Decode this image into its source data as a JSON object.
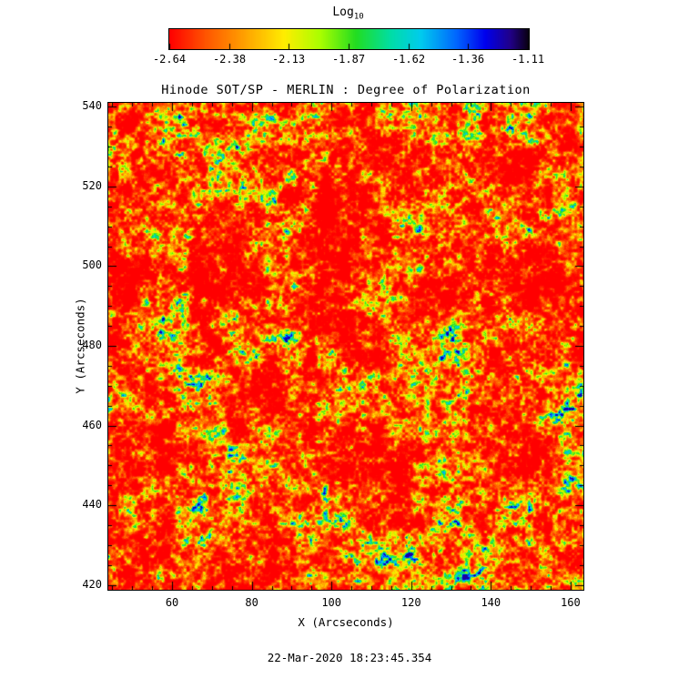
{
  "figure": {
    "title": "Hinode SOT/SP - MERLIN : Degree of Polarization",
    "timestamp": "22-Mar-2020 18:23:45.354"
  },
  "colorbar": {
    "label_base": "Log",
    "label_sub": "10",
    "ticks": [
      "-2.64",
      "-2.38",
      "-2.13",
      "-1.87",
      "-1.62",
      "-1.36",
      "-1.11"
    ],
    "stops": [
      {
        "p": 0.0,
        "c": "#ff0000"
      },
      {
        "p": 0.1,
        "c": "#ff5500"
      },
      {
        "p": 0.22,
        "c": "#ffaa00"
      },
      {
        "p": 0.32,
        "c": "#ffee00"
      },
      {
        "p": 0.42,
        "c": "#aaff00"
      },
      {
        "p": 0.52,
        "c": "#22dd22"
      },
      {
        "p": 0.62,
        "c": "#00ddaa"
      },
      {
        "p": 0.7,
        "c": "#00ccee"
      },
      {
        "p": 0.8,
        "c": "#0066ff"
      },
      {
        "p": 0.88,
        "c": "#0000ee"
      },
      {
        "p": 0.95,
        "c": "#220088"
      },
      {
        "p": 1.0,
        "c": "#0a0014"
      }
    ]
  },
  "chart_data": {
    "type": "heatmap",
    "title": "Hinode SOT/SP - MERLIN : Degree of Polarization",
    "xlabel": "X (Arcseconds)",
    "ylabel": "Y (Arcseconds)",
    "xlim": [
      44,
      163
    ],
    "ylim": [
      419,
      541
    ],
    "x_ticks": [
      60,
      80,
      100,
      120,
      140,
      160
    ],
    "y_ticks": [
      420,
      440,
      460,
      480,
      500,
      520,
      540
    ],
    "x_minor_step": 5,
    "y_minor_step": 5,
    "colorbar_label": "Log10",
    "colorbar_ticks": [
      -2.64,
      -2.38,
      -2.13,
      -1.87,
      -1.62,
      -1.36,
      -1.11
    ],
    "value_range": [
      -2.64,
      -1.11
    ],
    "grid": false,
    "legend": "top colorbar",
    "description": "Solar photospheric degree-of-polarization map rendered in log10 scale. Field is predominantly low polarization (red/orange, near -2.64) with dense fine-grained yellow-green speckles along granule boundaries and sparse strong-polarization clusters appearing cyan/dark-blue (toward -1.11).",
    "notable_features": [
      {
        "x": 113,
        "y": 455,
        "note": "compact dark-blue high-polarization cluster"
      },
      {
        "x": 135,
        "y": 482,
        "note": "blue patch"
      },
      {
        "x": 137,
        "y": 531,
        "note": "blue cluster near top right"
      },
      {
        "x": 122,
        "y": 527,
        "note": "blue-green network patch"
      },
      {
        "x": 161,
        "y": 486,
        "note": "blue patch at right edge"
      },
      {
        "x": 60,
        "y": 523,
        "note": "green-blue network lane upper left"
      }
    ]
  }
}
